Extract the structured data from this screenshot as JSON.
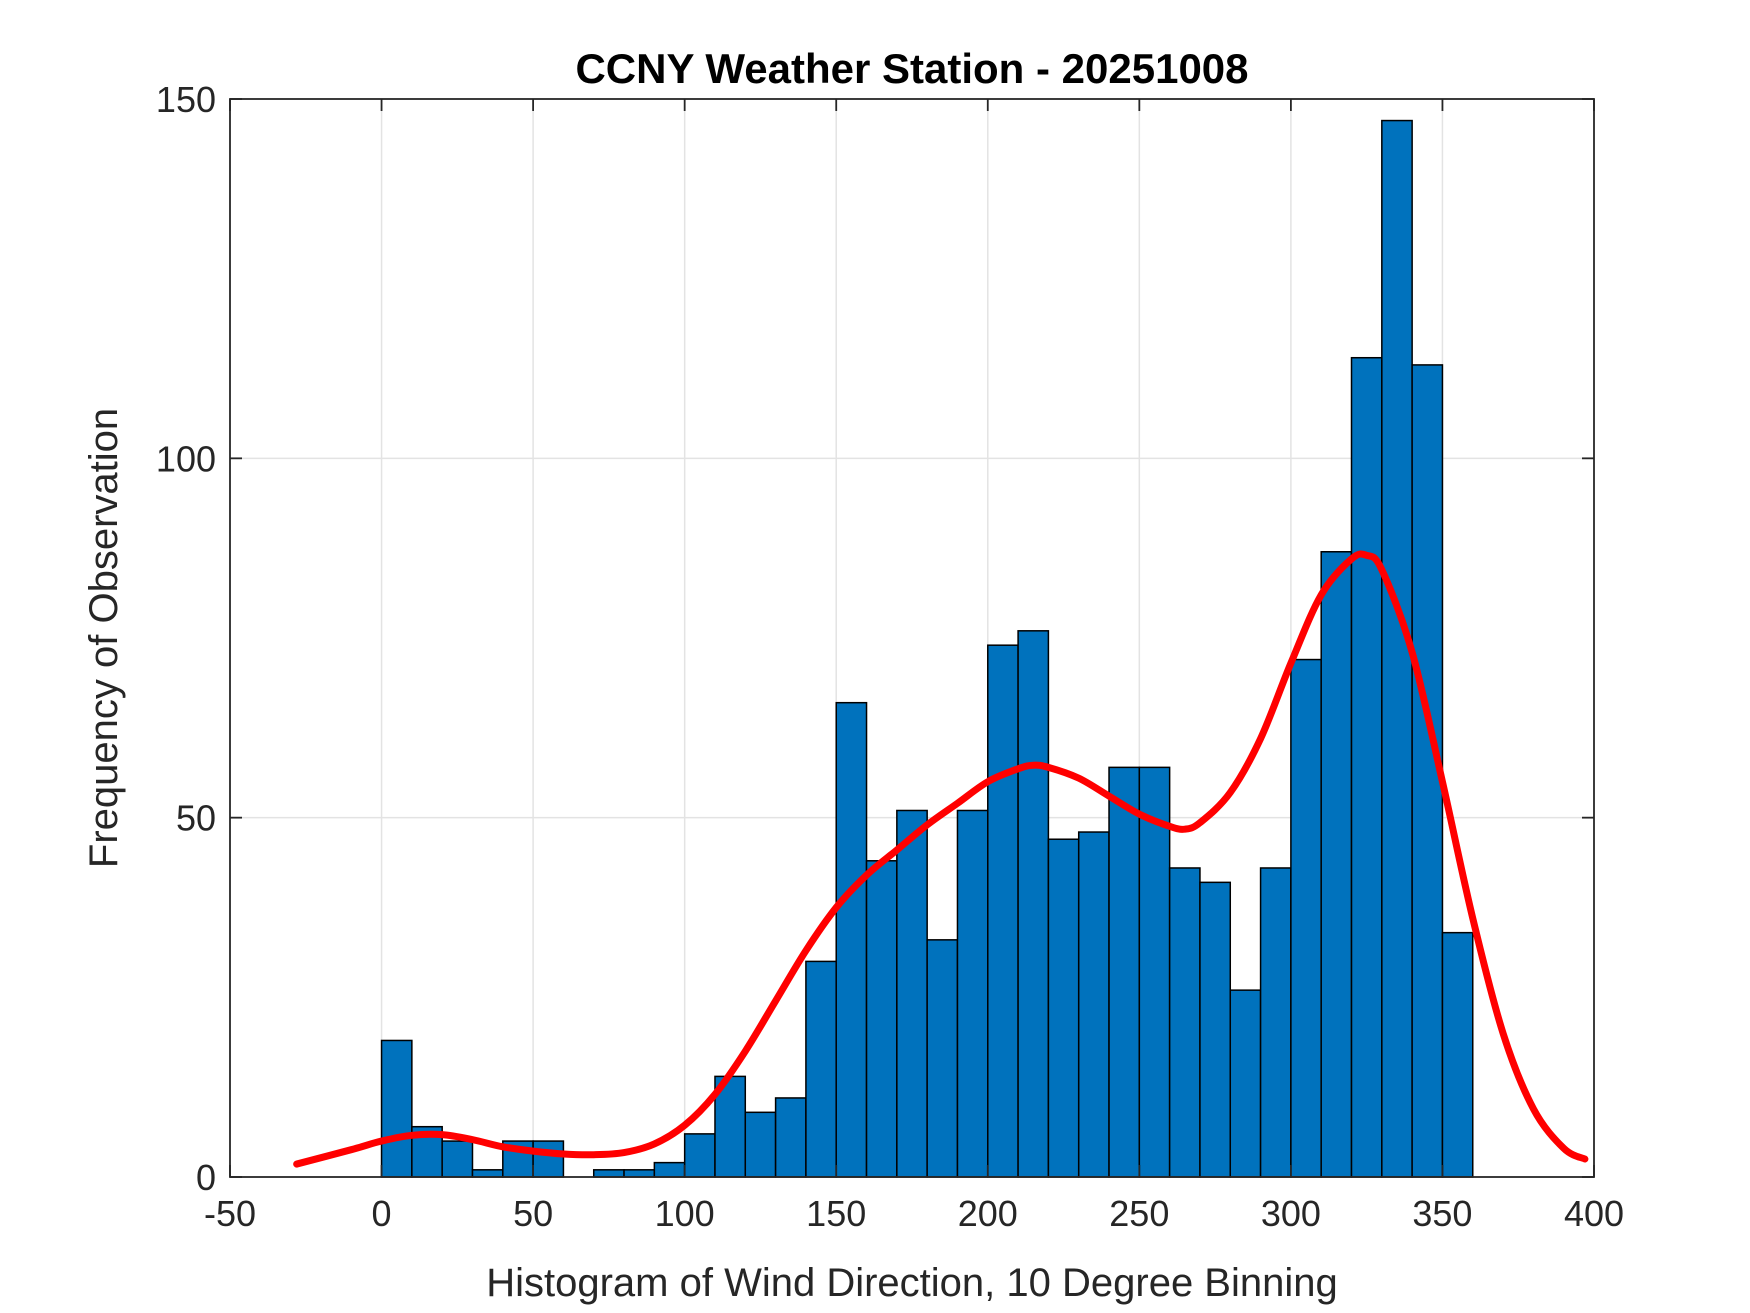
{
  "chart_data": {
    "type": "bar",
    "title": "CCNY Weather Station - 20251008",
    "xlabel": "Histogram of Wind Direction, 10 Degree Binning",
    "ylabel": "Frequency of Observation",
    "xlim": [
      -50,
      400
    ],
    "ylim": [
      0,
      150
    ],
    "x_ticks": [
      -50,
      0,
      50,
      100,
      150,
      200,
      250,
      300,
      350,
      400
    ],
    "y_ticks": [
      0,
      50,
      100,
      150
    ],
    "grid": true,
    "bin_width": 10,
    "bin_edges_start": [
      0,
      10,
      20,
      30,
      40,
      50,
      60,
      70,
      80,
      90,
      100,
      110,
      120,
      130,
      140,
      150,
      160,
      170,
      180,
      190,
      200,
      210,
      220,
      230,
      240,
      250,
      260,
      270,
      280,
      290,
      300,
      310,
      320,
      330,
      340,
      350
    ],
    "values": [
      19,
      7,
      5,
      1,
      5,
      5,
      0,
      1,
      1,
      2,
      6,
      14,
      9,
      11,
      30,
      66,
      44,
      51,
      33,
      51,
      74,
      76,
      47,
      48,
      57,
      57,
      43,
      41,
      26,
      43,
      72,
      87,
      114,
      147,
      113,
      34
    ],
    "bar_color": "#0072bd",
    "bar_edge_color": "#000000",
    "fit_curve": {
      "color": "#ff0000",
      "x": [
        -28,
        -10,
        0,
        10,
        20,
        30,
        40,
        50,
        60,
        70,
        80,
        90,
        100,
        110,
        120,
        130,
        140,
        150,
        160,
        170,
        180,
        190,
        200,
        210,
        215,
        220,
        230,
        240,
        250,
        260,
        265,
        270,
        280,
        290,
        300,
        310,
        320,
        325,
        330,
        340,
        350,
        360,
        370,
        380,
        390,
        397
      ],
      "y": [
        1.8,
        3.8,
        5.0,
        5.8,
        5.9,
        5.2,
        4.2,
        3.6,
        3.2,
        3.1,
        3.4,
        4.6,
        7.2,
        11.5,
        17.5,
        24.5,
        31.5,
        37.5,
        42.0,
        45.5,
        49.0,
        52.0,
        55.0,
        56.8,
        57.3,
        57.0,
        55.5,
        53.0,
        50.5,
        48.8,
        48.4,
        49.3,
        53.5,
        61.0,
        71.5,
        81.0,
        86.0,
        86.5,
        84.5,
        73.0,
        55.0,
        36.0,
        20.0,
        9.5,
        4.0,
        2.5
      ]
    }
  }
}
